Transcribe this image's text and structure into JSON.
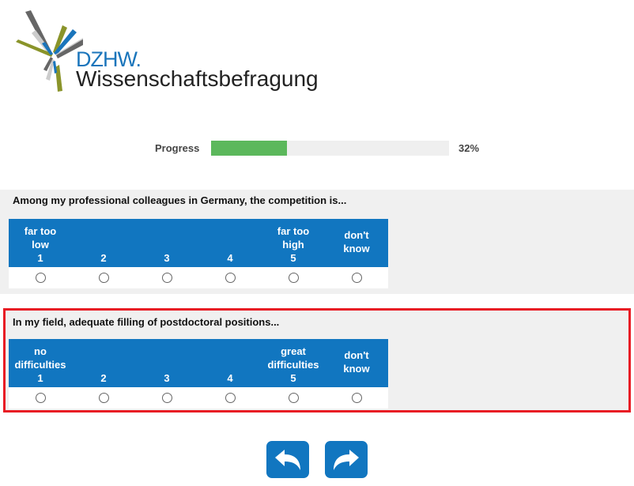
{
  "logo": {
    "brand": "DZHW.",
    "name": "Wissenschaftsbefragung"
  },
  "progress": {
    "label": "Progress",
    "percent": 32,
    "percent_text": "32%"
  },
  "questions": [
    {
      "text": "Among my professional colleagues in Germany, the competition is...",
      "cols": [
        [
          "far too",
          "low",
          "1"
        ],
        [
          "",
          "",
          "2"
        ],
        [
          "",
          "",
          "3"
        ],
        [
          "",
          "",
          "4"
        ],
        [
          "far too",
          "high",
          "5"
        ],
        [
          "don't",
          "know",
          ""
        ]
      ]
    },
    {
      "text": "In my field, adequate filling of postdoctoral positions...",
      "cols": [
        [
          "no",
          "difficulties",
          "1"
        ],
        [
          "",
          "",
          "2"
        ],
        [
          "",
          "",
          "3"
        ],
        [
          "",
          "",
          "4"
        ],
        [
          "great",
          "difficulties",
          "5"
        ],
        [
          "don't",
          "know",
          ""
        ]
      ]
    }
  ],
  "nav": {
    "back_icon": "back-arrow-icon",
    "next_icon": "forward-arrow-icon"
  },
  "colors": {
    "accent": "#1176c0",
    "progress": "#5cb85c",
    "highlight": "#e81c24"
  }
}
